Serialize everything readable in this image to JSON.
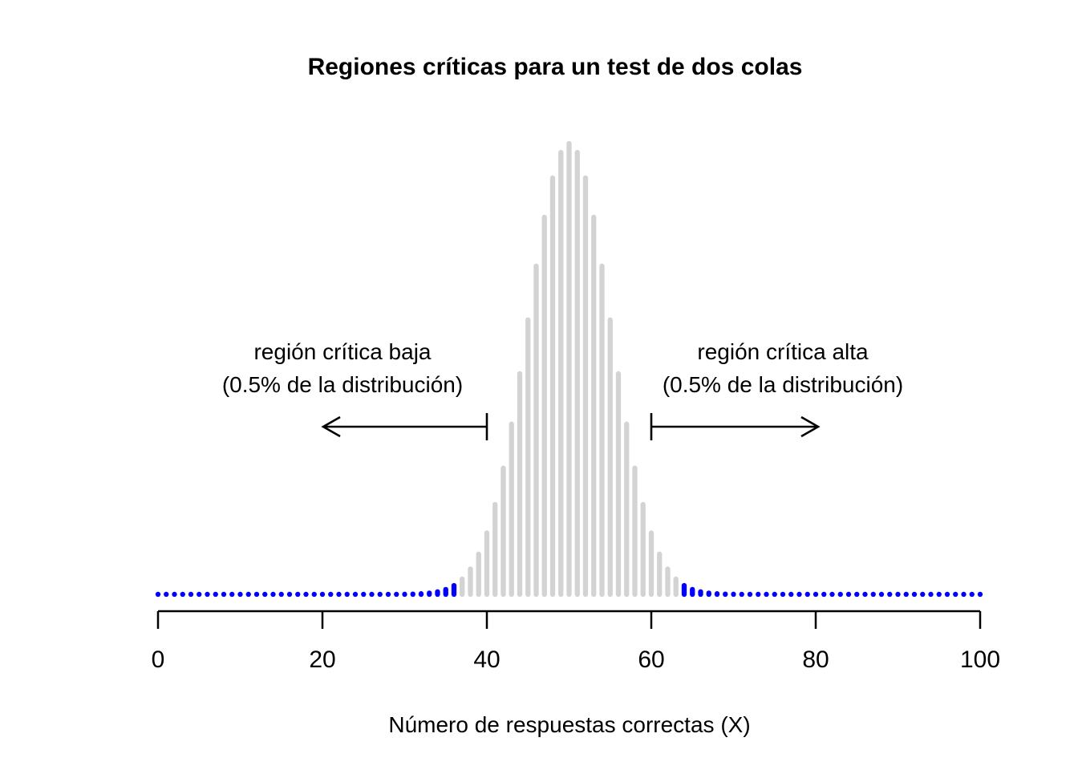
{
  "title": "Regiones críticas para un test de dos colas",
  "xlabel": "Número de respuestas correctas (X)",
  "annotations": {
    "left_line1": "región crítica baja",
    "left_line2": "(0.5% de la distribución)",
    "right_line1": "región crítica alta",
    "right_line2": "(0.5% de la distribución)"
  },
  "colors": {
    "bar_gray": "#D3D3D3",
    "critical_blue": "#0000FF",
    "axis_black": "#000000",
    "background": "#FFFFFF"
  },
  "chart_data": {
    "type": "bar",
    "subtype": "binomial-pmf-spike-plot",
    "title": "Regiones críticas para un test de dos colas",
    "xlabel": "Número de respuestas correctas (X)",
    "ylabel": "",
    "distribution": "Binomial(n=100, p=0.5) probability mass function, x = 0..100",
    "x_min": 0,
    "x_max": 100,
    "x_ticks": [
      0,
      20,
      40,
      60,
      80,
      100
    ],
    "grid": false,
    "legend": false,
    "y_axis_shown": false,
    "critical_low_max": 36,
    "critical_high_min": 64,
    "critical_region_low_label": "región crítica baja (0.5% de la distribución)",
    "critical_region_high_label": "región crítica alta (0.5% de la distribución)",
    "arrow_left": {
      "from_x": 40,
      "to_x": 20
    },
    "arrow_right": {
      "from_x": 60,
      "to_x": 80
    },
    "peak_x": 50,
    "peak_pmf": 0.0795892,
    "pmf": [
      0,
      0,
      0,
      0,
      0,
      0,
      0,
      0,
      0,
      0,
      0,
      0,
      0,
      0,
      0,
      0,
      0,
      0,
      0,
      0,
      0,
      0,
      0,
      0,
      1e-07,
      2e-07,
      6e-07,
      1.5e-06,
      3.9e-06,
      9.8e-06,
      2.32e-05,
      5.23e-05,
      0.0001128,
      0.0002325,
      0.0004581,
      0.0008638,
      0.0015597,
      0.0026979,
      0.0044728,
      0.0071107,
      0.0108439,
      0.0158691,
      0.0222923,
      0.0300687,
      0.0389526,
      0.0484743,
      0.0579584,
      0.0665905,
      0.073527,
      0.0780286,
      0.0795892,
      0.0780286,
      0.073527,
      0.0665905,
      0.0579584,
      0.0484743,
      0.0389526,
      0.0300687,
      0.0222923,
      0.0158691,
      0.0108439,
      0.0071107,
      0.0044728,
      0.0026979,
      0.0015597,
      0.0008638,
      0.0004581,
      0.0002325,
      0.0001128,
      5.23e-05,
      2.32e-05,
      9.8e-06,
      3.9e-06,
      1.5e-06,
      6e-07,
      2e-07,
      1e-07,
      0,
      0,
      0,
      0,
      0,
      0,
      0,
      0,
      0,
      0,
      0,
      0,
      0,
      0,
      0,
      0,
      0,
      0,
      0,
      0,
      0,
      0,
      0,
      0
    ]
  }
}
